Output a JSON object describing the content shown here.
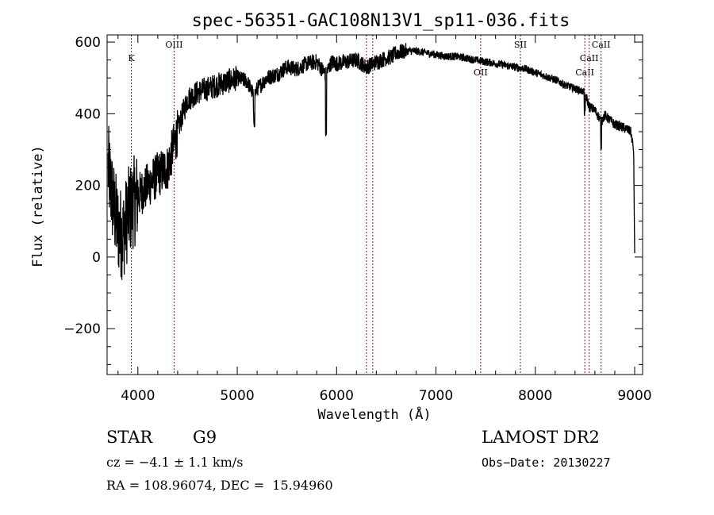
{
  "chart_data": {
    "type": "line",
    "title": "spec-56351-GAC108N13V1_sp11-036.fits",
    "xlabel": "Wavelength (Å)",
    "ylabel": "Flux (relative)",
    "xlim": [
      3690,
      9080
    ],
    "ylim": [
      -328,
      620
    ],
    "x_ticks": [
      4000,
      5000,
      6000,
      7000,
      8000,
      9000
    ],
    "x_tick_labels": [
      "4000",
      "5000",
      "6000",
      "7000",
      "8000",
      "9000"
    ],
    "y_ticks": [
      -200,
      0,
      200,
      400,
      600
    ],
    "y_tick_labels": [
      "−200",
      "0",
      "200",
      "400",
      "600"
    ],
    "grid": false,
    "line_color": "#000000",
    "marker_color": "#8b1a1a",
    "spectrum_envelope": {
      "x": [
        3700,
        3750,
        3800,
        3850,
        3900,
        3950,
        4000,
        4100,
        4200,
        4300,
        4380,
        4450,
        4500,
        4600,
        4700,
        4800,
        4900,
        5000,
        5100,
        5170,
        5200,
        5300,
        5400,
        5500,
        5600,
        5700,
        5800,
        5890,
        5950,
        6000,
        6100,
        6200,
        6300,
        6400,
        6500,
        6563,
        6600,
        6700,
        6800,
        6900,
        7000,
        7100,
        7200,
        7300,
        7400,
        7500,
        7600,
        7700,
        7800,
        7900,
        8000,
        8100,
        8200,
        8300,
        8400,
        8498,
        8542,
        8600,
        8662,
        8700,
        8800,
        8900,
        8960,
        8990,
        9000
      ],
      "y": [
        250,
        150,
        80,
        60,
        120,
        150,
        170,
        200,
        230,
        250,
        330,
        400,
        440,
        460,
        470,
        480,
        490,
        500,
        490,
        450,
        470,
        500,
        510,
        530,
        525,
        540,
        545,
        510,
        545,
        540,
        545,
        550,
        530,
        545,
        555,
        560,
        570,
        575,
        575,
        570,
        565,
        560,
        560,
        555,
        550,
        545,
        540,
        535,
        530,
        525,
        515,
        505,
        495,
        480,
        470,
        460,
        420,
        410,
        380,
        395,
        370,
        360,
        350,
        300,
        5
      ]
    },
    "line_markers": [
      {
        "label": "K",
        "wavelength": 3934
      },
      {
        "label": "OIII",
        "wavelength": 4364
      },
      {
        "label": "",
        "wavelength": 6300
      },
      {
        "label": "",
        "wavelength": 6364
      },
      {
        "label": "OII",
        "wavelength": 7450
      },
      {
        "label": "SII",
        "wavelength": 7850
      },
      {
        "label": "CaII",
        "wavelength": 8498
      },
      {
        "label": "CaII",
        "wavelength": 8542
      },
      {
        "label": "CaII",
        "wavelength": 8662
      }
    ]
  },
  "info": {
    "object_class": "STAR",
    "subclass": "G9",
    "redshift": "cz = −4.1 ± 1.1 km/s",
    "coords": "RA = 108.96074, DEC =  15.94960",
    "survey": "LAMOST DR2",
    "obs_date": "Obs−Date: 20130227"
  }
}
